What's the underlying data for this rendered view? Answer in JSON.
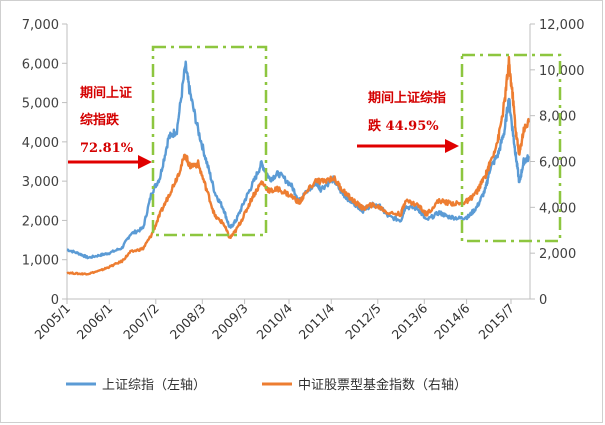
{
  "chart_data": {
    "type": "line",
    "title": "",
    "x_categories": [
      "2005/1",
      "2006/1",
      "2007/2",
      "2008/3",
      "2009/3",
      "2010/4",
      "2011/4",
      "2012/5",
      "2013/6",
      "2014/6",
      "2015/7"
    ],
    "left_axis": {
      "ticks": [
        0,
        1000,
        2000,
        3000,
        4000,
        5000,
        6000,
        7000
      ],
      "tick_labels": [
        "0",
        "1,000",
        "2,000",
        "3,000",
        "4,000",
        "5,000",
        "6,000",
        "7,000"
      ],
      "range": [
        0,
        7000
      ]
    },
    "right_axis": {
      "ticks": [
        0,
        2000,
        4000,
        6000,
        8000,
        10000,
        12000
      ],
      "tick_labels": [
        "0",
        "2,000",
        "4,000",
        "6,000",
        "8,000",
        "10,000",
        "12,000"
      ],
      "range": [
        0,
        12000
      ]
    },
    "series": [
      {
        "name": "上证综指（左轴）",
        "axis": "left",
        "color": "#5b9bd5",
        "points": [
          [
            2005.0,
            1260
          ],
          [
            2005.3,
            1150
          ],
          [
            2005.5,
            1050
          ],
          [
            2005.8,
            1120
          ],
          [
            2006.0,
            1170
          ],
          [
            2006.3,
            1300
          ],
          [
            2006.5,
            1650
          ],
          [
            2006.8,
            1800
          ],
          [
            2007.0,
            2700
          ],
          [
            2007.2,
            3100
          ],
          [
            2007.4,
            4100
          ],
          [
            2007.6,
            4300
          ],
          [
            2007.8,
            5950
          ],
          [
            2007.9,
            5300
          ],
          [
            2008.1,
            4300
          ],
          [
            2008.3,
            3500
          ],
          [
            2008.5,
            2700
          ],
          [
            2008.7,
            2300
          ],
          [
            2008.85,
            1800
          ],
          [
            2009.0,
            2000
          ],
          [
            2009.2,
            2500
          ],
          [
            2009.4,
            2950
          ],
          [
            2009.6,
            3450
          ],
          [
            2009.8,
            3050
          ],
          [
            2010.0,
            3200
          ],
          [
            2010.3,
            2900
          ],
          [
            2010.5,
            2500
          ],
          [
            2010.6,
            2650
          ],
          [
            2010.9,
            2950
          ],
          [
            2011.0,
            2800
          ],
          [
            2011.3,
            3050
          ],
          [
            2011.5,
            2700
          ],
          [
            2011.7,
            2500
          ],
          [
            2011.9,
            2350
          ],
          [
            2012.0,
            2250
          ],
          [
            2012.2,
            2400
          ],
          [
            2012.4,
            2350
          ],
          [
            2012.6,
            2100
          ],
          [
            2012.9,
            2000
          ],
          [
            2013.0,
            2350
          ],
          [
            2013.3,
            2300
          ],
          [
            2013.5,
            2000
          ],
          [
            2013.8,
            2200
          ],
          [
            2014.0,
            2100
          ],
          [
            2014.3,
            2050
          ],
          [
            2014.5,
            2100
          ],
          [
            2014.7,
            2350
          ],
          [
            2014.9,
            2800
          ],
          [
            2015.0,
            3300
          ],
          [
            2015.2,
            3700
          ],
          [
            2015.35,
            4300
          ],
          [
            2015.45,
            5100
          ],
          [
            2015.55,
            4200
          ],
          [
            2015.62,
            3600
          ],
          [
            2015.7,
            2950
          ],
          [
            2015.8,
            3500
          ],
          [
            2015.92,
            3600
          ]
        ]
      },
      {
        "name": "中证股票型基金指数（右轴）",
        "axis": "right",
        "color": "#ed7d31",
        "points": [
          [
            2005.0,
            1150
          ],
          [
            2005.3,
            1100
          ],
          [
            2005.5,
            1100
          ],
          [
            2005.8,
            1250
          ],
          [
            2006.0,
            1400
          ],
          [
            2006.3,
            1650
          ],
          [
            2006.5,
            2050
          ],
          [
            2006.8,
            2200
          ],
          [
            2007.0,
            2800
          ],
          [
            2007.2,
            3700
          ],
          [
            2007.4,
            4500
          ],
          [
            2007.6,
            5300
          ],
          [
            2007.8,
            6300
          ],
          [
            2007.9,
            5800
          ],
          [
            2008.1,
            5900
          ],
          [
            2008.3,
            4800
          ],
          [
            2008.5,
            3600
          ],
          [
            2008.7,
            3300
          ],
          [
            2008.85,
            2650
          ],
          [
            2009.0,
            3000
          ],
          [
            2009.2,
            3700
          ],
          [
            2009.4,
            4500
          ],
          [
            2009.6,
            5100
          ],
          [
            2009.8,
            4700
          ],
          [
            2010.0,
            4800
          ],
          [
            2010.3,
            4500
          ],
          [
            2010.5,
            4200
          ],
          [
            2010.6,
            4500
          ],
          [
            2010.9,
            5200
          ],
          [
            2011.0,
            5100
          ],
          [
            2011.3,
            5300
          ],
          [
            2011.5,
            4800
          ],
          [
            2011.7,
            4400
          ],
          [
            2011.9,
            4100
          ],
          [
            2012.0,
            3950
          ],
          [
            2012.2,
            4100
          ],
          [
            2012.4,
            4000
          ],
          [
            2012.6,
            3750
          ],
          [
            2012.9,
            3700
          ],
          [
            2013.0,
            4300
          ],
          [
            2013.3,
            4100
          ],
          [
            2013.5,
            3700
          ],
          [
            2013.8,
            4300
          ],
          [
            2014.0,
            4200
          ],
          [
            2014.3,
            4150
          ],
          [
            2014.5,
            4300
          ],
          [
            2014.7,
            4700
          ],
          [
            2014.9,
            5400
          ],
          [
            2015.0,
            5900
          ],
          [
            2015.2,
            7000
          ],
          [
            2015.35,
            8600
          ],
          [
            2015.45,
            10300
          ],
          [
            2015.55,
            8700
          ],
          [
            2015.62,
            7200
          ],
          [
            2015.7,
            6300
          ],
          [
            2015.8,
            7400
          ],
          [
            2015.92,
            7700
          ]
        ]
      }
    ],
    "annotations": [
      {
        "lines": [
          "期间上证",
          "综指跌",
          "72.81%"
        ]
      },
      {
        "lines": [
          "期间上证综指",
          "跌 44.95%"
        ]
      }
    ],
    "legend": {
      "position": "bottom"
    },
    "grid": false
  }
}
